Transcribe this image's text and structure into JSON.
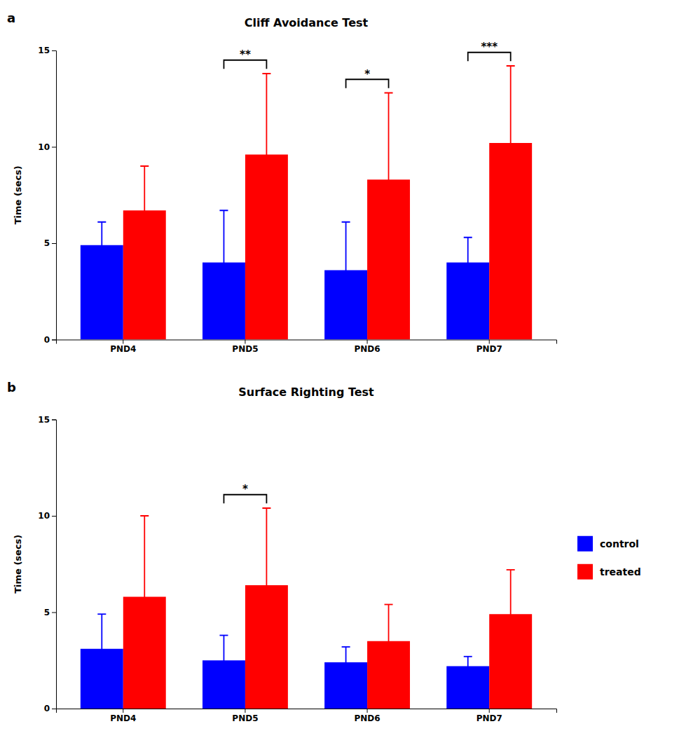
{
  "chart_data": [
    {
      "type": "bar",
      "title": "Cliff Avoidance Test",
      "panel_label": "a",
      "categories": [
        "PND4",
        "PND5",
        "PND6",
        "PND7"
      ],
      "series": [
        {
          "name": "control",
          "color": "#0000FF",
          "values": [
            4.9,
            4.0,
            3.6,
            4.0
          ],
          "errors": [
            1.2,
            2.7,
            2.5,
            1.3
          ]
        },
        {
          "name": "treated",
          "color": "#FF0000",
          "values": [
            6.7,
            9.6,
            8.3,
            10.2
          ],
          "errors": [
            2.3,
            4.2,
            4.5,
            4.0
          ]
        }
      ],
      "significance": [
        null,
        "**",
        "*",
        "***"
      ],
      "ylabel": "Time (secs)",
      "ylim": [
        0,
        15
      ],
      "yticks": [
        0,
        5,
        10,
        15
      ]
    },
    {
      "type": "bar",
      "title": "Surface Righting Test",
      "panel_label": "b",
      "categories": [
        "PND4",
        "PND5",
        "PND6",
        "PND7"
      ],
      "series": [
        {
          "name": "control",
          "color": "#0000FF",
          "values": [
            3.1,
            2.5,
            2.4,
            2.2
          ],
          "errors": [
            1.8,
            1.3,
            0.8,
            0.5
          ]
        },
        {
          "name": "treated",
          "color": "#FF0000",
          "values": [
            5.8,
            6.4,
            3.5,
            4.9
          ],
          "errors": [
            4.2,
            4.0,
            1.9,
            2.3
          ]
        }
      ],
      "significance": [
        null,
        "*",
        null,
        null
      ],
      "ylabel": "Time (secs)",
      "ylim": [
        0,
        15
      ],
      "yticks": [
        0,
        5,
        10,
        15
      ],
      "legend": "right"
    }
  ]
}
